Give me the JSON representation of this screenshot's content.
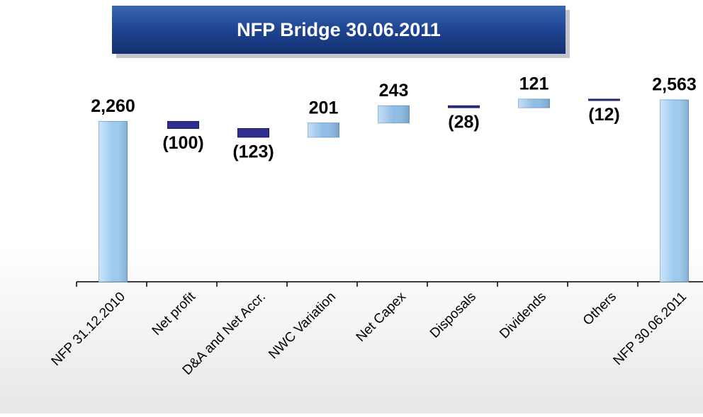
{
  "chart_data": {
    "type": "waterfall",
    "title": "NFP Bridge 30.06.2011",
    "categories": [
      "NFP 31.12.2010",
      "Net profit",
      "D&A and Net Accr.",
      "NWC Variation",
      "Net Capex",
      "Disposals",
      "Dividends",
      "Others",
      "NFP 30.06.2011"
    ],
    "values": [
      2260,
      -100,
      -123,
      201,
      243,
      -28,
      121,
      -12,
      2563
    ],
    "value_labels": [
      "2,260",
      "(100)",
      "(123)",
      "201",
      "243",
      "(28)",
      "121",
      "(12)",
      "2,563"
    ],
    "is_total": [
      true,
      false,
      false,
      false,
      false,
      false,
      false,
      false,
      true
    ],
    "colors": {
      "total": "#9ccbf0",
      "increase": "#8fbde6",
      "decrease": "#2e2f8f"
    }
  }
}
